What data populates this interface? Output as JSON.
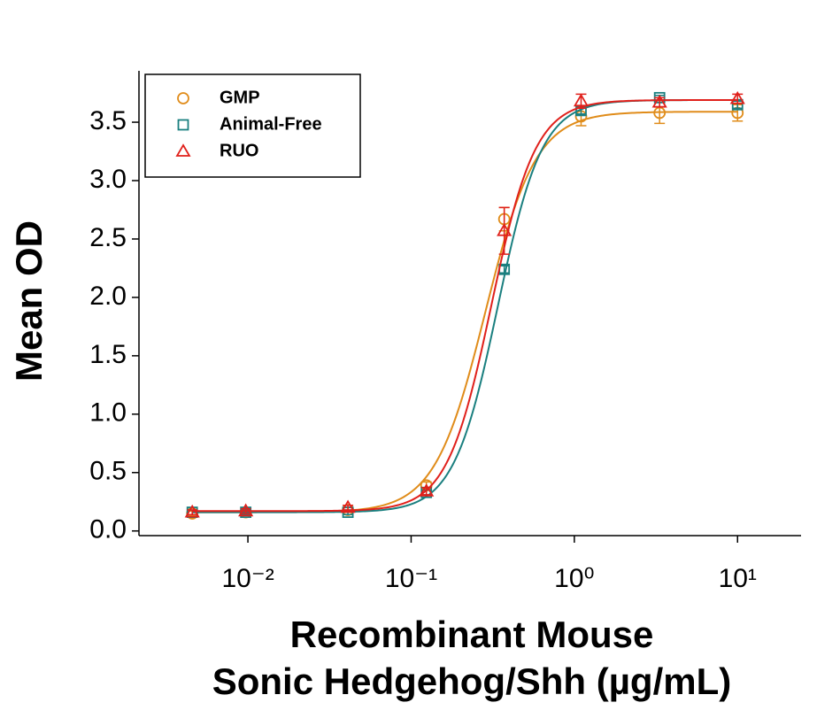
{
  "chart_data": {
    "type": "scatter",
    "y_label": "Mean OD",
    "x_label": [
      "Recombinant Mouse",
      "Sonic Hedgehog/Shh (µg/mL)"
    ],
    "x_scale": "log",
    "xlim": [
      0.00215,
      24.5
    ],
    "ylim": [
      -0.04,
      3.94
    ],
    "xticks": [
      {
        "value": 0.01,
        "label": "10⁻²"
      },
      {
        "value": 0.1,
        "label": "10⁻¹"
      },
      {
        "value": 1,
        "label": "10⁰"
      },
      {
        "value": 10,
        "label": "10¹"
      }
    ],
    "yticks": [
      {
        "value": 0,
        "label": "0.0"
      },
      {
        "value": 0.5,
        "label": "0.5"
      },
      {
        "value": 1,
        "label": "1.0"
      },
      {
        "value": 1.5,
        "label": "1.5"
      },
      {
        "value": 2,
        "label": "2.0"
      },
      {
        "value": 2.5,
        "label": "2.5"
      },
      {
        "value": 3,
        "label": "3.0"
      },
      {
        "value": 3.5,
        "label": "3.5"
      }
    ],
    "legend": "upper left",
    "x": [
      0.00456,
      0.0097,
      0.041,
      0.124,
      0.372,
      1.1,
      3.33,
      10
    ],
    "series": [
      {
        "name": "GMP",
        "color": "#e08c1a",
        "marker": "circle",
        "values": [
          0.15,
          0.16,
          0.18,
          0.39,
          2.67,
          3.55,
          3.58,
          3.58
        ],
        "errors": [
          0.02,
          0.02,
          0.02,
          0.03,
          0.1,
          0.08,
          0.09,
          0.07
        ],
        "fit": {
          "bottom": 0.16,
          "top": 3.59,
          "ec50": 0.285,
          "hill": 2.8
        }
      },
      {
        "name": "Animal-Free",
        "color": "#1a7f7f",
        "marker": "square",
        "values": [
          0.16,
          0.16,
          0.16,
          0.33,
          2.24,
          3.6,
          3.71,
          3.65
        ],
        "errors": [
          0.02,
          0.02,
          0.02,
          0.02,
          0.03,
          0.03,
          0.02,
          0.03
        ],
        "fit": {
          "bottom": 0.16,
          "top": 3.69,
          "ec50": 0.34,
          "hill": 3.2
        }
      },
      {
        "name": "RUO",
        "color": "#e0201b",
        "marker": "triangle",
        "values": [
          0.16,
          0.17,
          0.2,
          0.34,
          2.57,
          3.68,
          3.67,
          3.7
        ],
        "errors": [
          0.02,
          0.02,
          0.02,
          0.03,
          0.2,
          0.06,
          0.04,
          0.04
        ],
        "fit": {
          "bottom": 0.17,
          "top": 3.69,
          "ec50": 0.31,
          "hill": 3.2
        }
      }
    ]
  }
}
